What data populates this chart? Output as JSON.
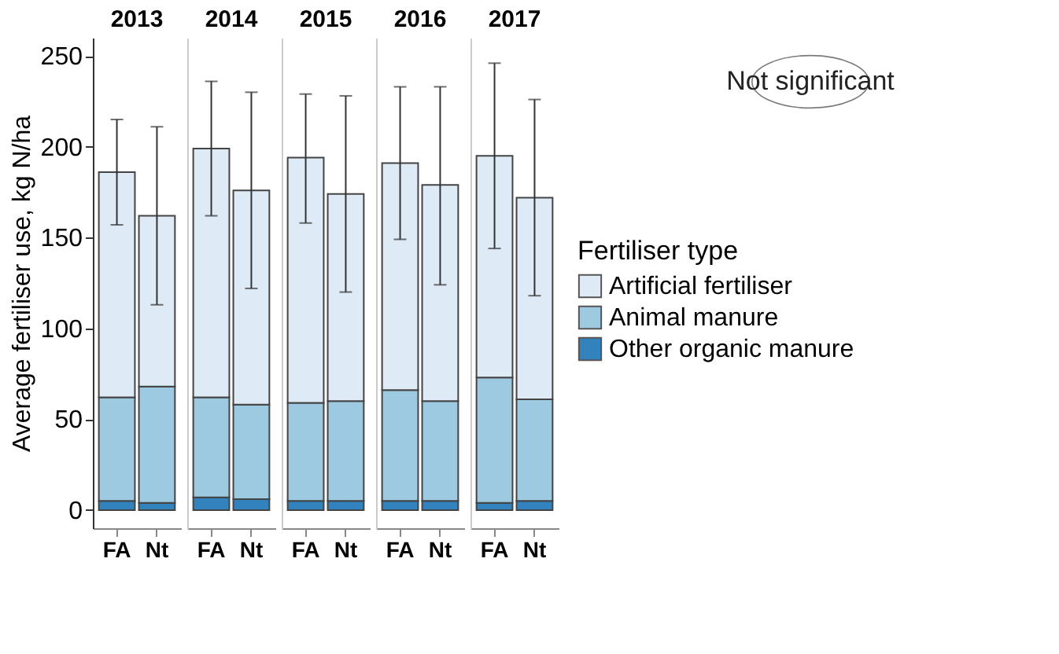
{
  "chart_data": [
    {
      "type": "bar",
      "stacked": true,
      "title": "2013",
      "ylabel": "Average fertiliser use, kg N/ha",
      "categories": [
        "FA",
        "Nt"
      ],
      "ylim": [
        -10,
        260
      ],
      "yticks": [
        0,
        50,
        100,
        150,
        200,
        250
      ],
      "grid": false,
      "legend": "right",
      "legend_title": "Fertiliser type",
      "series": [
        {
          "name": "Other organic manure",
          "color": "#3182bd",
          "values": [
            5,
            4
          ]
        },
        {
          "name": "Animal manure",
          "color": "#9ecae1",
          "values": [
            57,
            64
          ]
        },
        {
          "name": "Artificial fertiliser",
          "color": "#deebf7",
          "values": [
            124,
            94
          ],
          "errors": [
            [
              157,
              215
            ],
            [
              113,
              211
            ]
          ]
        }
      ]
    },
    {
      "type": "bar",
      "stacked": true,
      "title": "2014",
      "categories": [
        "FA",
        "Nt"
      ],
      "ylim": [
        -10,
        260
      ],
      "yticks": [
        0,
        50,
        100,
        150,
        200,
        250
      ],
      "tick_labels": "x",
      "grid": false,
      "series": [
        {
          "color": "#3182bd",
          "values": [
            7,
            6
          ]
        },
        {
          "color": "#9ecae1",
          "values": [
            55,
            52
          ]
        },
        {
          "color": "#deebf7",
          "values": [
            137,
            118
          ],
          "errors": [
            [
              162,
              236
            ],
            [
              122,
              230
            ]
          ]
        }
      ]
    },
    {
      "type": "bar",
      "stacked": true,
      "title": "2015",
      "categories": [
        "FA",
        "Nt"
      ],
      "ylim": [
        -10,
        260
      ],
      "yticks": [
        0,
        50,
        100,
        150,
        200,
        250
      ],
      "tick_labels": "x",
      "grid": false,
      "series": [
        {
          "color": "#3182bd",
          "values": [
            5,
            5
          ]
        },
        {
          "color": "#9ecae1",
          "values": [
            54,
            55
          ]
        },
        {
          "color": "#deebf7",
          "values": [
            135,
            114
          ],
          "errors": [
            [
              158,
              229
            ],
            [
              120,
              228
            ]
          ]
        }
      ]
    },
    {
      "type": "bar",
      "stacked": true,
      "title": "2016",
      "categories": [
        "FA",
        "Nt"
      ],
      "ylim": [
        -10,
        260
      ],
      "yticks": [
        0,
        50,
        100,
        150,
        200,
        250
      ],
      "tick_labels": "x",
      "grid": false,
      "series": [
        {
          "color": "#3182bd",
          "values": [
            5,
            5
          ]
        },
        {
          "color": "#9ecae1",
          "values": [
            61,
            55
          ]
        },
        {
          "color": "#deebf7",
          "values": [
            125,
            119
          ],
          "errors": [
            [
              149,
              233
            ],
            [
              124,
              233
            ]
          ]
        }
      ]
    },
    {
      "type": "bar",
      "stacked": true,
      "title": "2017",
      "categories": [
        "FA",
        "Nt"
      ],
      "ylim": [
        -10,
        260
      ],
      "yticks": [
        0,
        50,
        100,
        150,
        200,
        250
      ],
      "tick_labels": "x",
      "grid": false,
      "annotations": [
        "Not significant"
      ],
      "series": [
        {
          "color": "#3182bd",
          "values": [
            4,
            5
          ]
        },
        {
          "color": "#9ecae1",
          "values": [
            69,
            56
          ]
        },
        {
          "color": "#deebf7",
          "values": [
            122,
            111
          ],
          "errors": [
            [
              144,
              246
            ],
            [
              118,
              226
            ]
          ]
        }
      ]
    }
  ]
}
